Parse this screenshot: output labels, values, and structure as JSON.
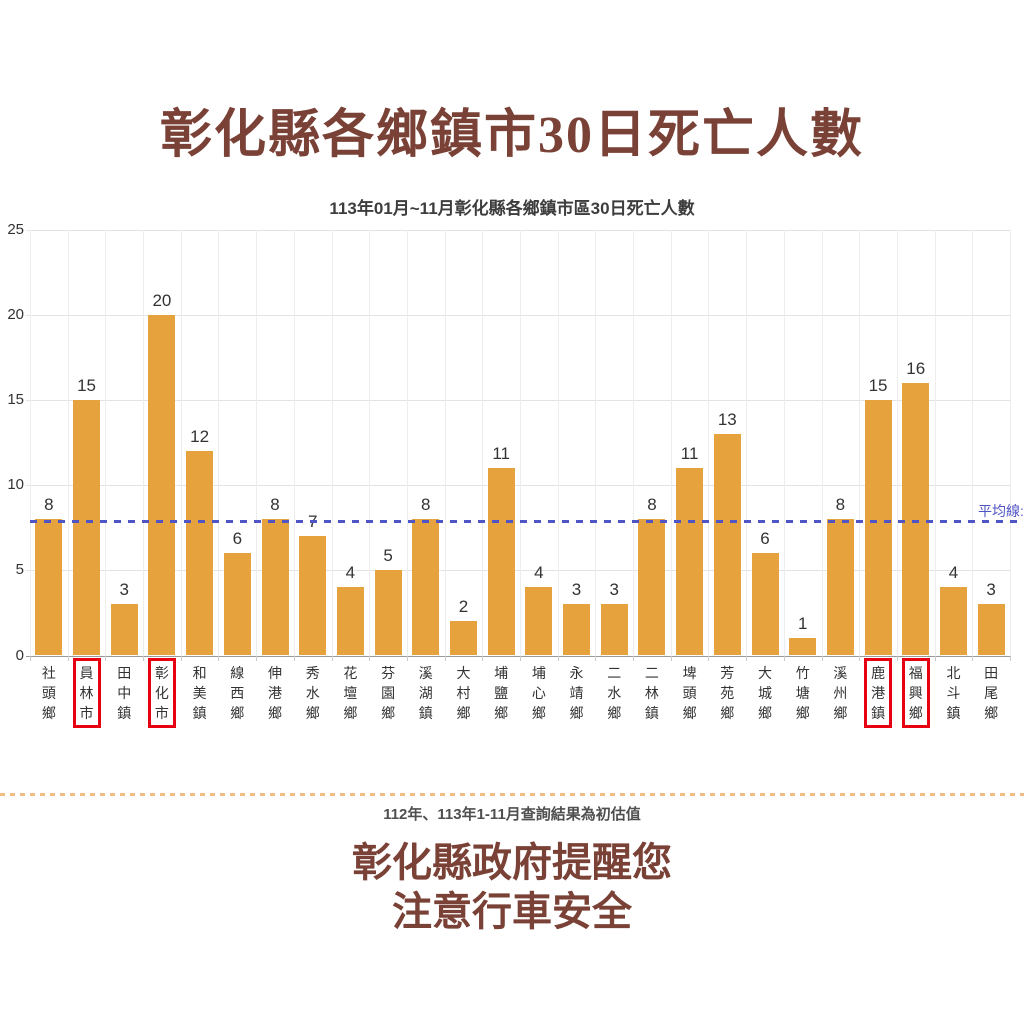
{
  "page_title": "彰化縣各鄉鎮市30日死亡人數",
  "chart_data": {
    "type": "bar",
    "title": "113年01月~11月彰化縣各鄉鎮市區30日死亡人數",
    "categories": [
      "社頭鄉",
      "員林市",
      "田中鎮",
      "彰化市",
      "和美鎮",
      "線西鄉",
      "伸港鄉",
      "秀水鄉",
      "花壇鄉",
      "芬園鄉",
      "溪湖鎮",
      "大村鄉",
      "埔鹽鄉",
      "埔心鄉",
      "永靖鄉",
      "二水鄉",
      "二林鎮",
      "埤頭鄉",
      "芳苑鄉",
      "大城鄉",
      "竹塘鄉",
      "溪州鄉",
      "鹿港鎮",
      "福興鄉",
      "北斗鎮",
      "田尾鄉"
    ],
    "values": [
      8,
      15,
      3,
      20,
      12,
      6,
      8,
      7,
      4,
      5,
      8,
      2,
      11,
      4,
      3,
      3,
      8,
      11,
      13,
      6,
      1,
      8,
      15,
      16,
      4,
      3
    ],
    "highlighted": [
      "員林市",
      "彰化市",
      "鹿港鎮",
      "福興鄉"
    ],
    "xlabel": "",
    "ylabel": "",
    "ylim": [
      0,
      25
    ],
    "yticks": [
      0,
      5,
      10,
      15,
      20,
      25
    ],
    "grid": true,
    "legend_position": "none",
    "bar_color": "#e6a23c",
    "average_line": {
      "value": 7.85,
      "label": "平均線:",
      "color": "#5055c5"
    },
    "highlight_box_color": "#e60012"
  },
  "footer": {
    "note": "112年、113年1-11月查詢結果為初估值",
    "message_line1": "彰化縣政府提醒您",
    "message_line2": "注意行車安全"
  },
  "colors": {
    "title_text": "#7a4136",
    "bar": "#e6a23c",
    "average_line": "#5055c5",
    "highlight_box": "#e60012",
    "divider": "#f2bc83"
  }
}
